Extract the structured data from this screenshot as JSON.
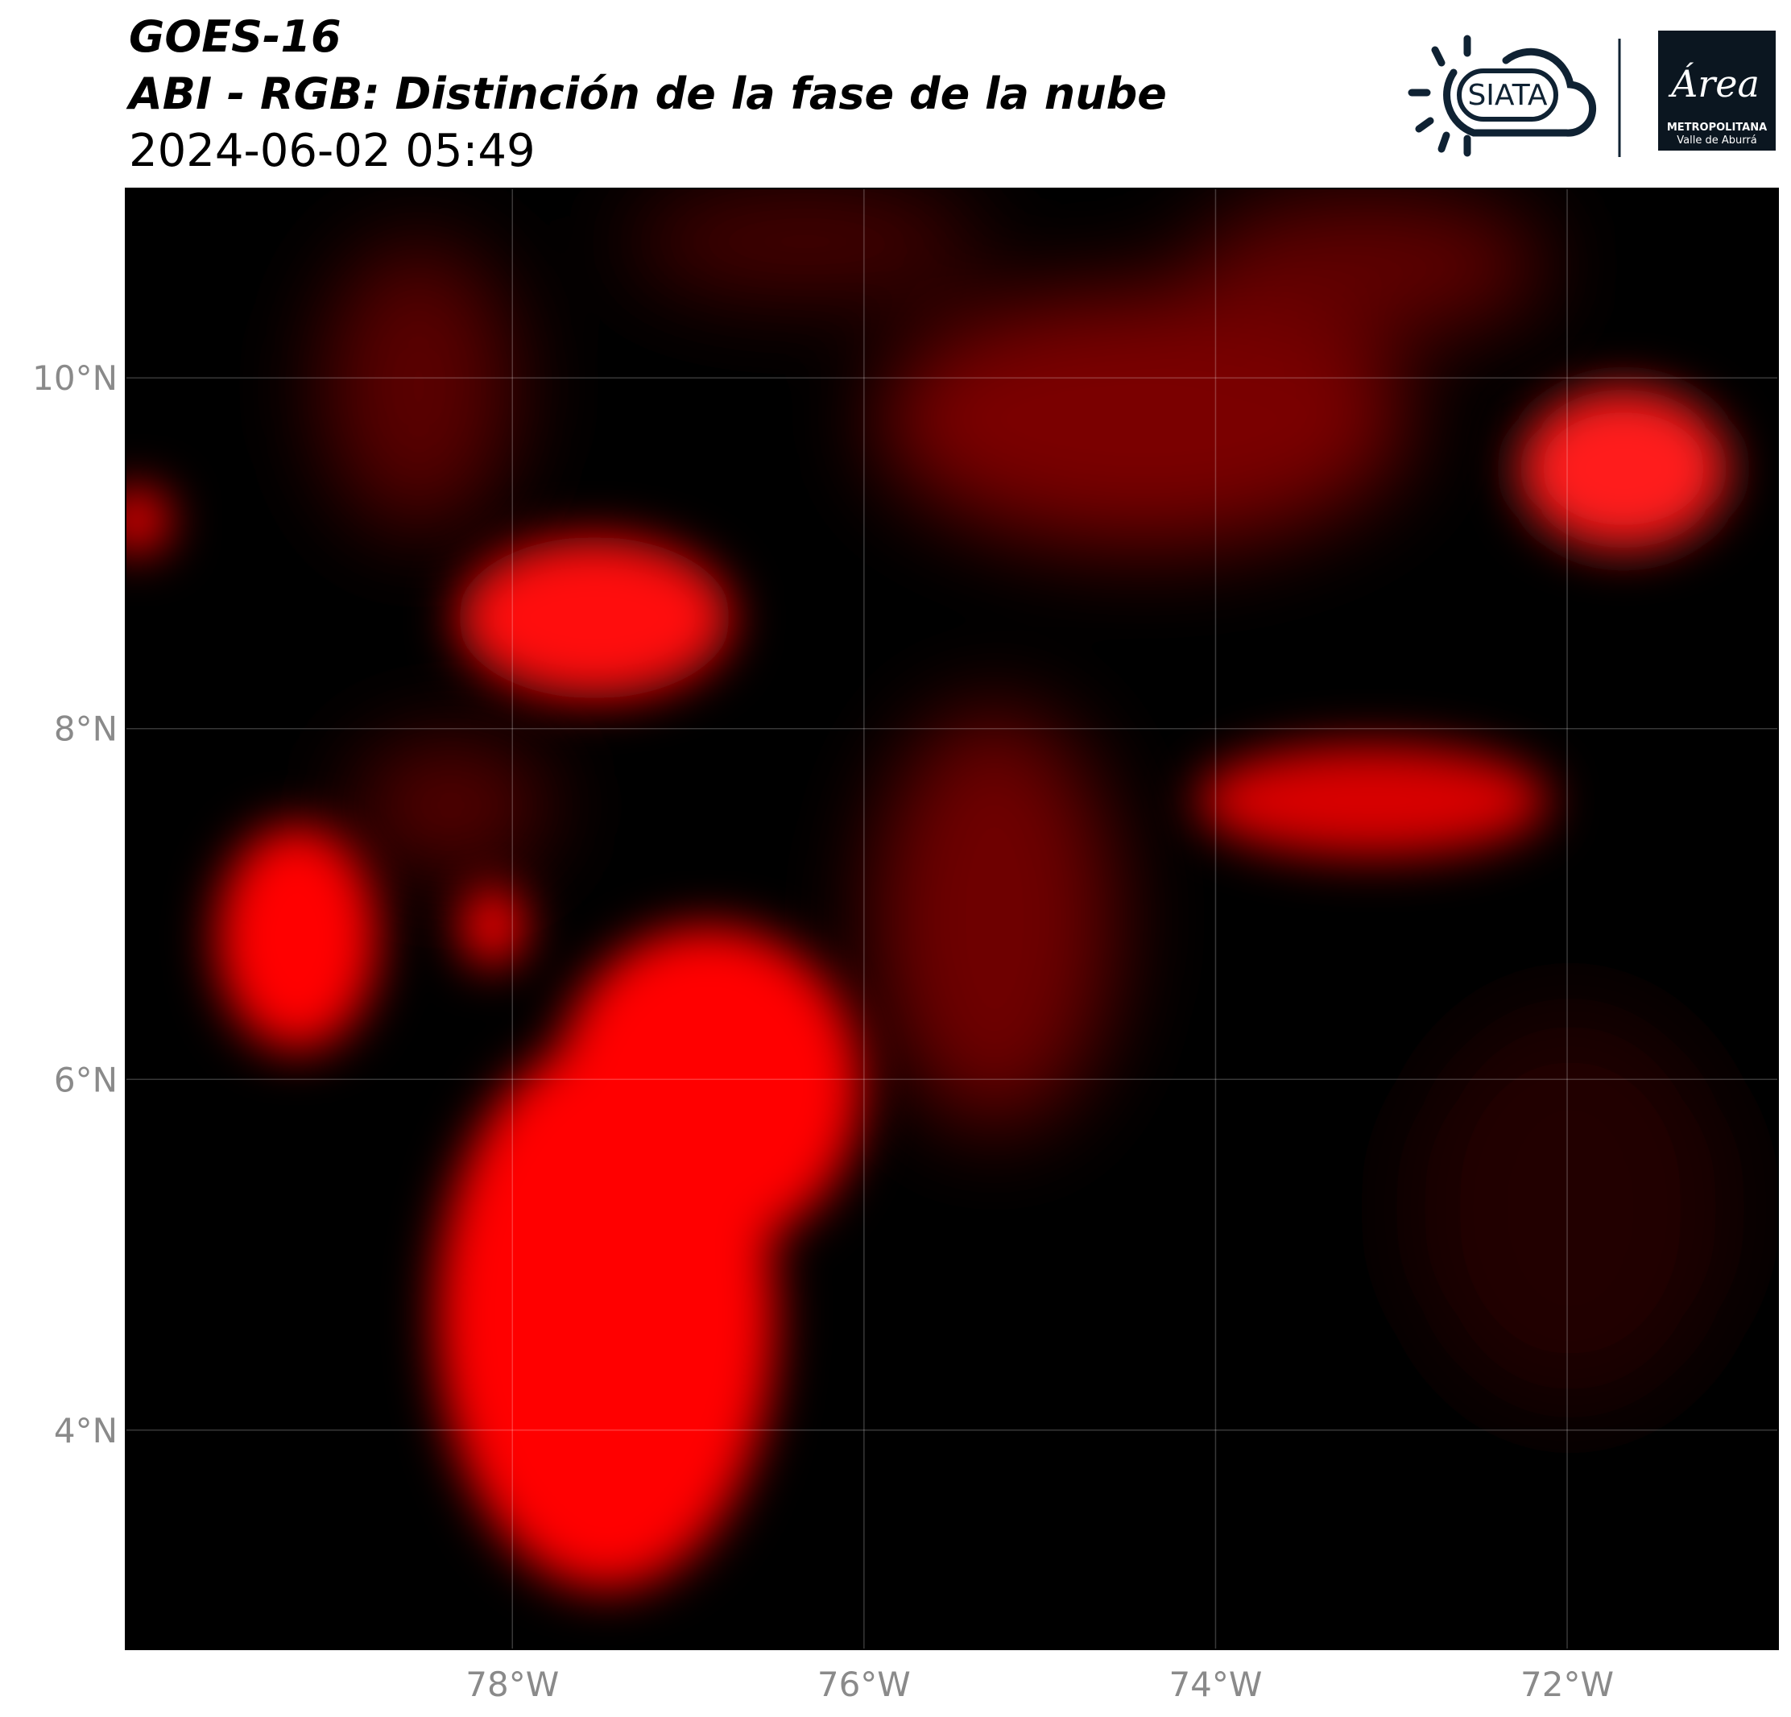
{
  "header": {
    "title": "GOES-16",
    "subtitle": "ABI - RGB: Distinción de la fase de la nube",
    "datetime": "2024-06-02 05:49"
  },
  "logos": {
    "siata": "SIATA",
    "area": "Área",
    "area_line1": "METROPOLITANA",
    "area_line2": "Valle de Aburrá"
  },
  "map": {
    "xlim": [
      -80.2,
      -70.8
    ],
    "ylim": [
      2.75,
      11.08
    ],
    "xticks": [
      {
        "value": -78,
        "label": "78°W"
      },
      {
        "value": -76,
        "label": "76°W"
      },
      {
        "value": -74,
        "label": "74°W"
      },
      {
        "value": -72,
        "label": "72°W"
      }
    ],
    "yticks": [
      {
        "value": 4,
        "label": "4°N"
      },
      {
        "value": 6,
        "label": "6°N"
      },
      {
        "value": 8,
        "label": "8°N"
      },
      {
        "value": 10,
        "label": "10°N"
      }
    ],
    "grid": true
  }
}
